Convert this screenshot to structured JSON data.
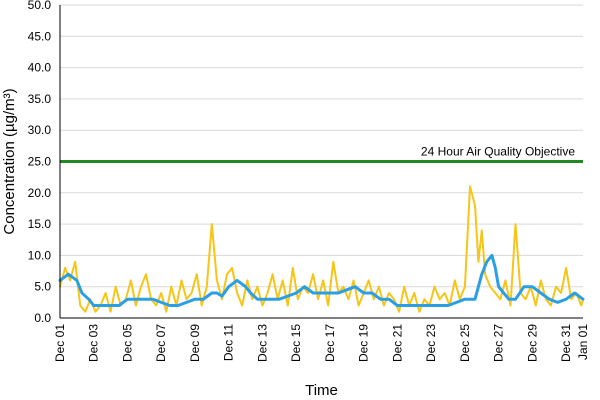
{
  "chart_data": {
    "type": "line",
    "xlabel": "Time",
    "ylabel": "Concentration (µg/m³)",
    "ylim": [
      0,
      50
    ],
    "x_range_days": [
      0,
      31
    ],
    "y_ticks": [
      "0.0",
      "5.0",
      "10.0",
      "15.0",
      "20.0",
      "25.0",
      "30.0",
      "35.0",
      "40.0",
      "45.0",
      "50.0"
    ],
    "x_ticks": [
      "Dec 01",
      "Dec 03",
      "Dec 05",
      "Dec 07",
      "Dec 09",
      "Dec 11",
      "Dec 13",
      "Dec 15",
      "Dec 17",
      "Dec 19",
      "Dec 21",
      "Dec 23",
      "Dec 25",
      "Dec 27",
      "Dec 29",
      "Dec 31",
      "Jan 01"
    ],
    "grid": true,
    "colors": {
      "hourly": "#f5c518",
      "rolling": "#2a9fe6",
      "objective": "#1f8a1f",
      "grid": "#d9d9d9"
    },
    "objective": {
      "value": 25,
      "label": "24 Hour Air Quality Objective"
    },
    "series": [
      {
        "key": "hourly",
        "x_days": [
          0,
          0.3,
          0.6,
          0.9,
          1.2,
          1.5,
          1.8,
          2.1,
          2.4,
          2.7,
          3.0,
          3.3,
          3.6,
          3.9,
          4.2,
          4.5,
          4.8,
          5.1,
          5.4,
          5.7,
          6.0,
          6.3,
          6.6,
          6.9,
          7.2,
          7.5,
          7.8,
          8.1,
          8.4,
          8.7,
          9.0,
          9.3,
          9.6,
          9.9,
          10.2,
          10.5,
          10.8,
          11.1,
          11.4,
          11.7,
          12.0,
          12.3,
          12.6,
          12.9,
          13.2,
          13.5,
          13.8,
          14.1,
          14.4,
          14.7,
          15.0,
          15.3,
          15.6,
          15.9,
          16.2,
          16.5,
          16.8,
          17.1,
          17.4,
          17.7,
          18.0,
          18.3,
          18.6,
          18.9,
          19.2,
          19.5,
          19.8,
          20.1,
          20.4,
          20.7,
          21.0,
          21.3,
          21.6,
          21.9,
          22.2,
          22.5,
          22.8,
          23.1,
          23.4,
          23.7,
          24.0,
          24.3,
          24.6,
          24.8,
          25.0,
          25.2,
          25.5,
          25.8,
          26.1,
          26.4,
          26.7,
          27.0,
          27.3,
          27.6,
          27.9,
          28.2,
          28.5,
          28.8,
          29.1,
          29.4,
          29.7,
          30.0,
          30.3,
          30.6,
          30.9,
          31.0
        ],
        "values": [
          5,
          8,
          6,
          9,
          2,
          1,
          3,
          1,
          2,
          4,
          1,
          5,
          2,
          3,
          6,
          2,
          5,
          7,
          3,
          2,
          4,
          1,
          5,
          2,
          6,
          3,
          4,
          7,
          2,
          5,
          15,
          6,
          3,
          7,
          8,
          4,
          2,
          6,
          3,
          5,
          2,
          4,
          7,
          3,
          6,
          2,
          8,
          3,
          5,
          4,
          7,
          3,
          6,
          2,
          9,
          4,
          5,
          3,
          6,
          2,
          4,
          6,
          3,
          5,
          2,
          4,
          3,
          1,
          5,
          2,
          4,
          1,
          3,
          2,
          5,
          3,
          4,
          2,
          6,
          3,
          5,
          21,
          18,
          9,
          14,
          7,
          5,
          4,
          3,
          6,
          2,
          15,
          4,
          3,
          5,
          2,
          6,
          3,
          2,
          5,
          4,
          8,
          3,
          4,
          2,
          3
        ]
      },
      {
        "key": "rolling",
        "x_days": [
          0,
          0.5,
          1.0,
          1.3,
          1.7,
          2.0,
          2.5,
          3.0,
          3.5,
          4.0,
          4.5,
          5.0,
          5.5,
          6.0,
          6.5,
          7.0,
          7.5,
          8.0,
          8.5,
          9.0,
          9.3,
          9.6,
          10.0,
          10.5,
          11.0,
          11.3,
          11.7,
          12.0,
          12.5,
          13.0,
          13.5,
          14.0,
          14.5,
          15.0,
          15.5,
          16.0,
          16.5,
          17.0,
          17.5,
          18.0,
          18.5,
          19.0,
          19.5,
          20.0,
          20.5,
          21.0,
          21.5,
          22.0,
          22.5,
          23.0,
          23.5,
          24.0,
          24.3,
          24.6,
          25.0,
          25.3,
          25.6,
          25.8,
          26.0,
          26.3,
          26.6,
          27.0,
          27.5,
          28.0,
          28.5,
          29.0,
          29.5,
          30.0,
          30.5,
          31.0
        ],
        "values": [
          6,
          7,
          6,
          4,
          3,
          2,
          2,
          2,
          2,
          3,
          3,
          3,
          3,
          2.5,
          2,
          2,
          2.5,
          3,
          3,
          4,
          4,
          3.5,
          5,
          6,
          5,
          4,
          3,
          3,
          3,
          3,
          3.5,
          4,
          5,
          4,
          4,
          4,
          4,
          4.5,
          5,
          4,
          4,
          3,
          3,
          2,
          2,
          2,
          2,
          2,
          2,
          2,
          2.5,
          3,
          3,
          3,
          7,
          9,
          10,
          8,
          5,
          4,
          3,
          3,
          5,
          5,
          4,
          3,
          2.5,
          3,
          4,
          3
        ]
      }
    ]
  }
}
